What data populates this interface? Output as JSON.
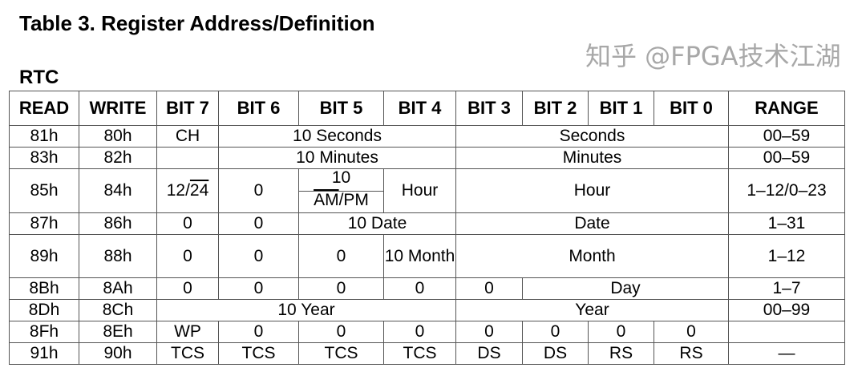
{
  "title": "Table 3. Register Address/Definition",
  "subtitle": "RTC",
  "headers": [
    "READ",
    "WRITE",
    "BIT 7",
    "BIT 6",
    "BIT 5",
    "BIT 4",
    "BIT 3",
    "BIT 2",
    "BIT 1",
    "BIT 0",
    "RANGE"
  ],
  "rows": [
    {
      "cells": [
        {
          "t": "81h"
        },
        {
          "t": "80h"
        },
        {
          "t": "CH"
        },
        {
          "t": "10 Seconds",
          "span": 3
        },
        {
          "t": "Seconds",
          "span": 4
        },
        {
          "t": "00–59"
        }
      ]
    },
    {
      "cells": [
        {
          "t": "83h"
        },
        {
          "t": "82h"
        },
        {
          "t": ""
        },
        {
          "t": "10 Minutes",
          "span": 3
        },
        {
          "t": "Minutes",
          "span": 4
        },
        {
          "t": "00–59"
        }
      ]
    },
    {
      "tall": true,
      "cells": [
        {
          "t": "85h"
        },
        {
          "t": "84h"
        },
        {
          "parts": [
            {
              "t": "12/"
            },
            {
              "t": "24",
              "o": true
            }
          ]
        },
        {
          "t": "0"
        },
        {
          "split": [
            [
              {
                "t": "10"
              }
            ],
            [
              {
                "t": "AM",
                "o": true
              },
              {
                "t": "/PM"
              }
            ]
          ]
        },
        {
          "t": "Hour"
        },
        {
          "t": "Hour",
          "span": 4
        },
        {
          "t": "1–12/0–23"
        }
      ]
    },
    {
      "cells": [
        {
          "t": "87h"
        },
        {
          "t": "86h"
        },
        {
          "t": "0"
        },
        {
          "t": "0"
        },
        {
          "t": "10 Date",
          "span": 2
        },
        {
          "t": "Date",
          "span": 4
        },
        {
          "t": "1–31"
        }
      ]
    },
    {
      "tall": true,
      "cells": [
        {
          "t": "89h"
        },
        {
          "t": "88h"
        },
        {
          "t": "0"
        },
        {
          "t": "0"
        },
        {
          "t": "0"
        },
        {
          "t": "10 Month"
        },
        {
          "t": "Month",
          "span": 4
        },
        {
          "t": "1–12"
        }
      ]
    },
    {
      "cells": [
        {
          "t": "8Bh"
        },
        {
          "t": "8Ah"
        },
        {
          "t": "0"
        },
        {
          "t": "0"
        },
        {
          "t": "0"
        },
        {
          "t": "0"
        },
        {
          "t": "0"
        },
        {
          "t": "Day",
          "span": 3
        },
        {
          "t": "1–7"
        }
      ]
    },
    {
      "cells": [
        {
          "t": "8Dh"
        },
        {
          "t": "8Ch"
        },
        {
          "t": "10 Year",
          "span": 4
        },
        {
          "t": "Year",
          "span": 4
        },
        {
          "t": "00–99"
        }
      ]
    },
    {
      "cells": [
        {
          "t": "8Fh"
        },
        {
          "t": "8Eh"
        },
        {
          "t": "WP"
        },
        {
          "t": "0"
        },
        {
          "t": "0"
        },
        {
          "t": "0"
        },
        {
          "t": "0"
        },
        {
          "t": "0"
        },
        {
          "t": "0"
        },
        {
          "t": "0"
        },
        {
          "t": ""
        }
      ]
    },
    {
      "cells": [
        {
          "t": "91h"
        },
        {
          "t": "90h"
        },
        {
          "t": "TCS"
        },
        {
          "t": "TCS"
        },
        {
          "t": "TCS"
        },
        {
          "t": "TCS"
        },
        {
          "t": "DS"
        },
        {
          "t": "DS"
        },
        {
          "t": "RS"
        },
        {
          "t": "RS"
        },
        {
          "t": "—"
        }
      ]
    }
  ],
  "watermark": "知乎 @FPGA技术江湖"
}
